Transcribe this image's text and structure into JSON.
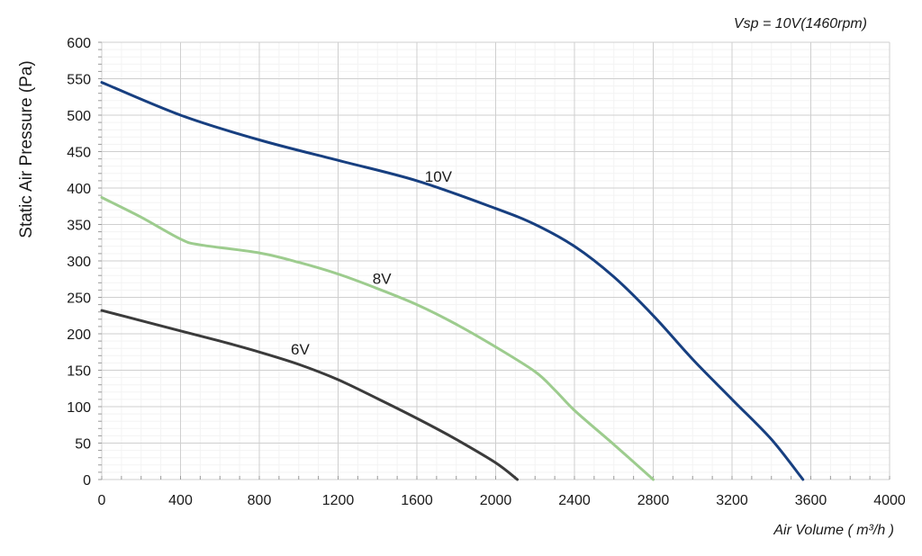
{
  "annotation": "Vsp = 10V(1460rpm)",
  "chart_data": {
    "type": "line",
    "xlabel": "Air Volume ( m³/h )",
    "ylabel": "Static Air Pressure  (Pa)",
    "xlim": [
      0,
      4000
    ],
    "ylim": [
      0,
      600
    ],
    "x_ticks": [
      "0",
      "400",
      "800",
      "1200",
      "1600",
      "2000",
      "2400",
      "2800",
      "3200",
      "3600",
      "4000"
    ],
    "y_ticks": [
      "0",
      "50",
      "100",
      "150",
      "200",
      "250",
      "300",
      "350",
      "400",
      "450",
      "500",
      "550",
      "600"
    ],
    "grid": true,
    "series": [
      {
        "name": "10V",
        "color": "#173f80",
        "points": [
          [
            0,
            545
          ],
          [
            400,
            500
          ],
          [
            800,
            466
          ],
          [
            1200,
            438
          ],
          [
            1600,
            410
          ],
          [
            2000,
            372
          ],
          [
            2200,
            350
          ],
          [
            2400,
            320
          ],
          [
            2600,
            278
          ],
          [
            2800,
            225
          ],
          [
            3000,
            165
          ],
          [
            3200,
            110
          ],
          [
            3400,
            55
          ],
          [
            3560,
            0
          ]
        ]
      },
      {
        "name": "8V",
        "color": "#9dcc8e",
        "points": [
          [
            0,
            387
          ],
          [
            200,
            360
          ],
          [
            400,
            330
          ],
          [
            500,
            322
          ],
          [
            800,
            311
          ],
          [
            1000,
            298
          ],
          [
            1200,
            282
          ],
          [
            1400,
            262
          ],
          [
            1600,
            240
          ],
          [
            1800,
            213
          ],
          [
            2000,
            182
          ],
          [
            2200,
            148
          ],
          [
            2300,
            123
          ],
          [
            2400,
            95
          ],
          [
            2600,
            48
          ],
          [
            2800,
            0
          ]
        ]
      },
      {
        "name": "6V",
        "color": "#3b3b3b",
        "points": [
          [
            0,
            232
          ],
          [
            200,
            218
          ],
          [
            400,
            204
          ],
          [
            600,
            190
          ],
          [
            800,
            175
          ],
          [
            1000,
            158
          ],
          [
            1200,
            137
          ],
          [
            1400,
            111
          ],
          [
            1600,
            84
          ],
          [
            1800,
            55
          ],
          [
            2000,
            23
          ],
          [
            2110,
            0
          ]
        ]
      }
    ]
  }
}
